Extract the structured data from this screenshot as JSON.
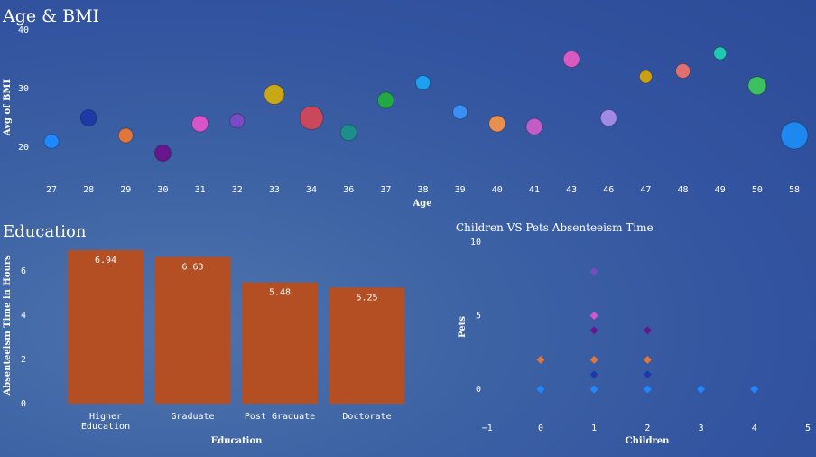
{
  "chart_data": [
    {
      "type": "scatter",
      "title": "Age & BMI",
      "xlabel": "Age",
      "ylabel": "Avg of BMI",
      "ylim": [
        15,
        40
      ],
      "yticks": [
        20,
        30,
        40
      ],
      "categories": [
        "27",
        "28",
        "29",
        "30",
        "31",
        "32",
        "33",
        "34",
        "36",
        "37",
        "38",
        "39",
        "40",
        "41",
        "43",
        "46",
        "47",
        "48",
        "49",
        "50",
        "58"
      ],
      "values": [
        21,
        25,
        22,
        19,
        24,
        24.5,
        29,
        25,
        22.5,
        28,
        31,
        26,
        24,
        23.5,
        35,
        25,
        32,
        33,
        36,
        30.5,
        22
      ],
      "sizes": [
        8,
        9,
        8,
        9,
        9,
        8,
        11,
        13,
        9,
        9,
        8,
        8,
        9,
        9,
        9,
        9,
        7,
        8,
        7,
        10,
        15
      ],
      "colors": [
        "#1f88ff",
        "#1f3aa8",
        "#e0763a",
        "#6a1590",
        "#d755c8",
        "#7b4ac4",
        "#c9a817",
        "#c9485c",
        "#1d8f8a",
        "#22a845",
        "#1ea0f0",
        "#3b8ef2",
        "#e89050",
        "#c35cc6",
        "#d65ac0",
        "#a08ae6",
        "#c9a012",
        "#e07070",
        "#1fc9b0",
        "#3cc060",
        "#1f88f0"
      ]
    },
    {
      "type": "bar",
      "title": "Education",
      "xlabel": "Education",
      "ylabel": "Absenteeism Time in Hours",
      "ylim": [
        0,
        7
      ],
      "yticks": [
        0,
        2,
        4,
        6
      ],
      "categories": [
        "Higher Education",
        "Graduate",
        "Post Graduate",
        "Doctorate"
      ],
      "values": [
        6.94,
        6.63,
        5.48,
        5.25
      ],
      "data_labels": [
        "6.94",
        "6.63",
        "5.48",
        "5.25"
      ],
      "color": "#b34f23"
    },
    {
      "type": "scatter",
      "title": "Children VS Pets Absenteeism Time",
      "xlabel": "Children",
      "ylabel": "Pets",
      "xlim": [
        -1,
        5
      ],
      "ylim": [
        0,
        10
      ],
      "xticks": [
        "−1",
        "0",
        "1",
        "2",
        "3",
        "4",
        "5"
      ],
      "yticks": [
        0,
        5,
        10
      ],
      "points": [
        {
          "x": 0,
          "y": 0,
          "color": "#1f88ff"
        },
        {
          "x": 0,
          "y": 2,
          "color": "#e0763a"
        },
        {
          "x": 1,
          "y": 0,
          "color": "#1f88ff"
        },
        {
          "x": 1,
          "y": 1,
          "color": "#1f3aa8"
        },
        {
          "x": 1,
          "y": 2,
          "color": "#e0763a"
        },
        {
          "x": 1,
          "y": 4,
          "color": "#6a1590"
        },
        {
          "x": 1,
          "y": 5,
          "color": "#d755c8"
        },
        {
          "x": 1,
          "y": 8,
          "color": "#7b4ac4"
        },
        {
          "x": 2,
          "y": 0,
          "color": "#1f88ff"
        },
        {
          "x": 2,
          "y": 1,
          "color": "#1f3aa8"
        },
        {
          "x": 2,
          "y": 2,
          "color": "#e0763a"
        },
        {
          "x": 2,
          "y": 4,
          "color": "#6a1590"
        },
        {
          "x": 3,
          "y": 0,
          "color": "#1f88ff"
        },
        {
          "x": 4,
          "y": 0,
          "color": "#1f88ff"
        }
      ]
    }
  ]
}
